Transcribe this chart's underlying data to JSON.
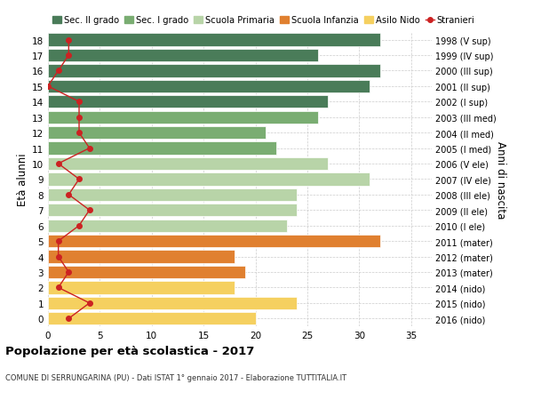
{
  "ages": [
    18,
    17,
    16,
    15,
    14,
    13,
    12,
    11,
    10,
    9,
    8,
    7,
    6,
    5,
    4,
    3,
    2,
    1,
    0
  ],
  "bar_values": [
    32,
    26,
    32,
    31,
    27,
    26,
    21,
    22,
    27,
    31,
    24,
    24,
    23,
    32,
    18,
    19,
    18,
    24,
    20
  ],
  "bar_colors": [
    "#4a7c59",
    "#4a7c59",
    "#4a7c59",
    "#4a7c59",
    "#4a7c59",
    "#7aad72",
    "#7aad72",
    "#7aad72",
    "#b8d4a8",
    "#b8d4a8",
    "#b8d4a8",
    "#b8d4a8",
    "#b8d4a8",
    "#e08030",
    "#e08030",
    "#e08030",
    "#f5d060",
    "#f5d060",
    "#f5d060"
  ],
  "stranieri": [
    2,
    2,
    1,
    0,
    3,
    3,
    3,
    4,
    1,
    3,
    2,
    4,
    3,
    1,
    1,
    2,
    1,
    4,
    2
  ],
  "right_labels": [
    "1998 (V sup)",
    "1999 (IV sup)",
    "2000 (III sup)",
    "2001 (II sup)",
    "2002 (I sup)",
    "2003 (III med)",
    "2004 (II med)",
    "2005 (I med)",
    "2006 (V ele)",
    "2007 (IV ele)",
    "2008 (III ele)",
    "2009 (II ele)",
    "2010 (I ele)",
    "2011 (mater)",
    "2012 (mater)",
    "2013 (mater)",
    "2014 (nido)",
    "2015 (nido)",
    "2016 (nido)"
  ],
  "legend_labels": [
    "Sec. II grado",
    "Sec. I grado",
    "Scuola Primaria",
    "Scuola Infanzia",
    "Asilo Nido",
    "Stranieri"
  ],
  "legend_colors": [
    "#4a7c59",
    "#7aad72",
    "#b8d4a8",
    "#e08030",
    "#f5d060",
    "#cc2222"
  ],
  "ylabel": "Età alunni",
  "right_ylabel": "Anni di nascita",
  "title": "Popolazione per età scolastica - 2017",
  "subtitle": "COMUNE DI SERRUNGARINA (PU) - Dati ISTAT 1° gennaio 2017 - Elaborazione TUTTITALIA.IT",
  "xlim": [
    0,
    37
  ],
  "xticks": [
    0,
    5,
    10,
    15,
    20,
    25,
    30,
    35
  ],
  "grid_color": "#cccccc",
  "bar_height": 0.82,
  "stranieri_color": "#cc2222",
  "stranieri_marker": "o",
  "stranieri_markersize": 4,
  "stranieri_linewidth": 1.0
}
